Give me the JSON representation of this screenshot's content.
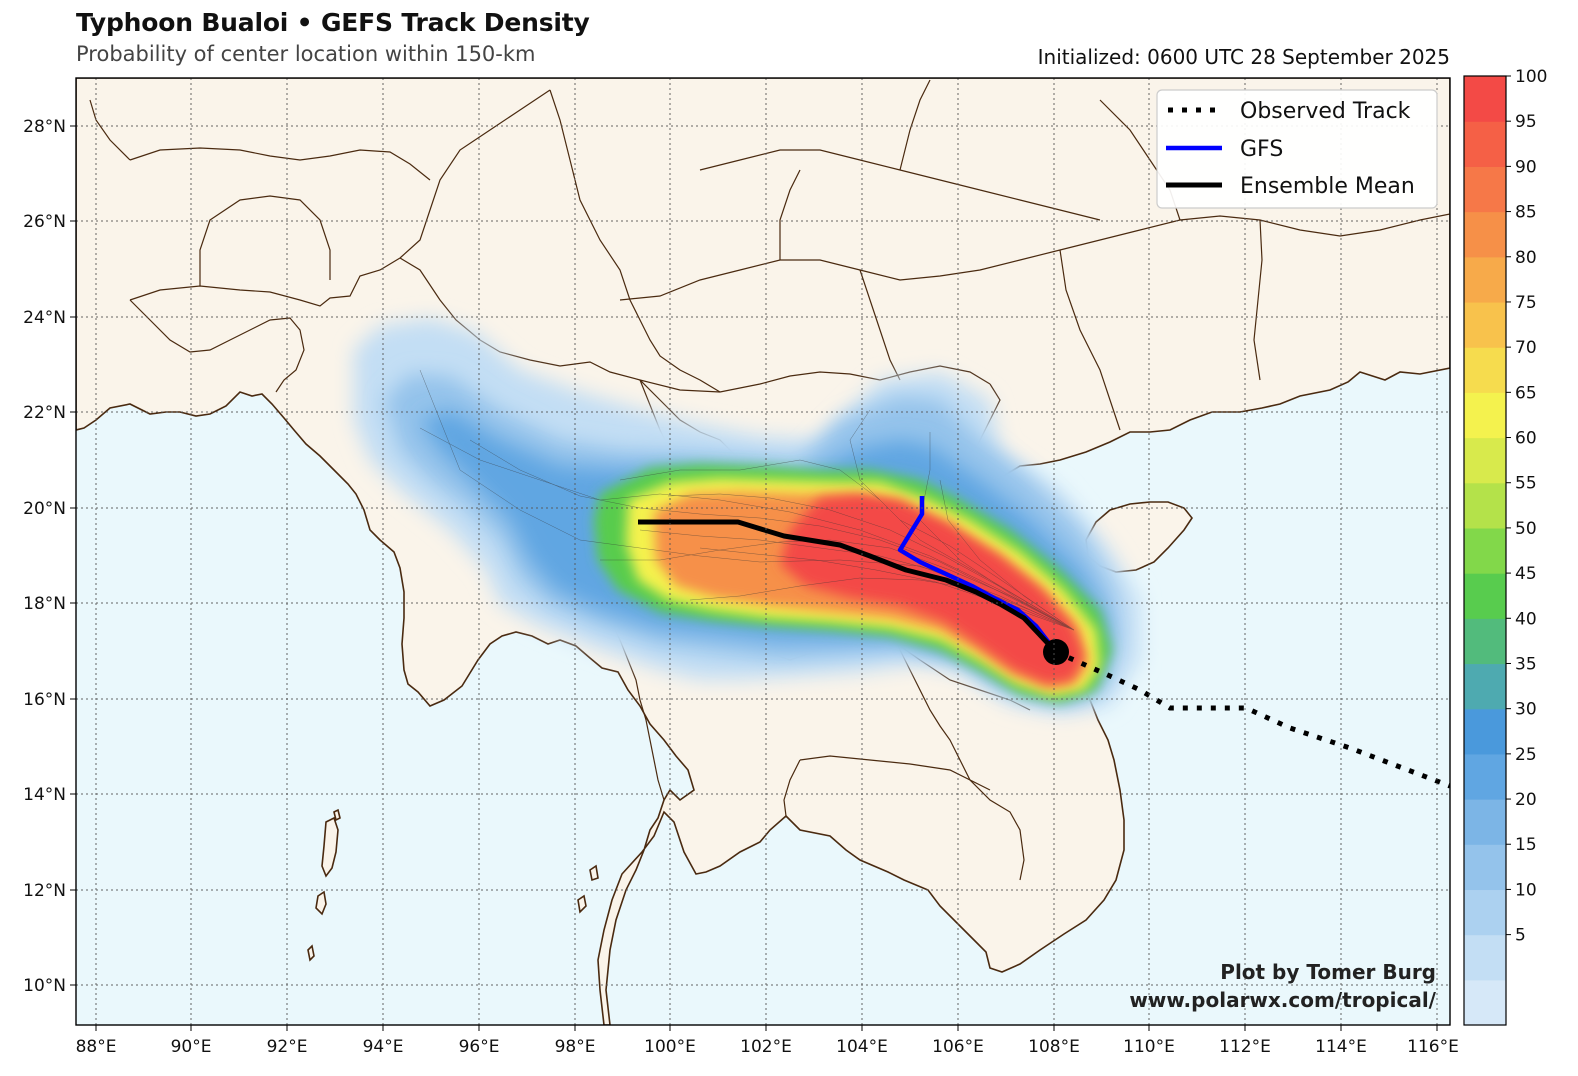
{
  "header": {
    "title": "Typhoon Bualoi • GEFS Track Density",
    "subtitle": "Probability of center location within 150-km",
    "initialized": "Initialized: 0600 UTC 28 September 2025"
  },
  "credit": {
    "line1": "Plot by Tomer Burg",
    "line2": "www.polarwx.com/tropical/"
  },
  "legend": [
    {
      "label": "Observed Track",
      "style": "dotted",
      "color": "#000000"
    },
    {
      "label": "GFS",
      "style": "solid",
      "color": "#0000ff"
    },
    {
      "label": "Ensemble Mean",
      "style": "solid",
      "color": "#000000"
    }
  ],
  "axes": {
    "lon_ticks": [
      "88°E",
      "90°E",
      "92°E",
      "94°E",
      "96°E",
      "98°E",
      "100°E",
      "102°E",
      "104°E",
      "106°E",
      "108°E",
      "110°E",
      "112°E",
      "114°E",
      "116°E"
    ],
    "lat_ticks": [
      "28°N",
      "26°N",
      "24°N",
      "22°N",
      "20°N",
      "18°N",
      "16°N",
      "14°N",
      "12°N",
      "10°N"
    ]
  },
  "colorbar": {
    "labels": [
      "100",
      "95",
      "90",
      "85",
      "80",
      "75",
      "70",
      "65",
      "60",
      "55",
      "50",
      "45",
      "40",
      "35",
      "30",
      "25",
      "20",
      "15",
      "10",
      "5"
    ],
    "colors": [
      "#d6e8f8",
      "#c3def4",
      "#acd1f0",
      "#94c3eb",
      "#7cb5e6",
      "#60a6e2",
      "#4a99dc",
      "#4eaab0",
      "#52bb7c",
      "#58cc4e",
      "#82d84a",
      "#b4e24a",
      "#d8ea4c",
      "#f4f24e",
      "#f6dc4e",
      "#f8c24c",
      "#f7aa4a",
      "#f69048",
      "#f67848",
      "#f56046",
      "#f34a46"
    ]
  },
  "colors": {
    "land": "#faf4ea",
    "ocean": "#eaf8fc",
    "border": "#4a2a10",
    "grid": "#555555",
    "gfs": "#0000ff",
    "mean": "#000000"
  }
}
